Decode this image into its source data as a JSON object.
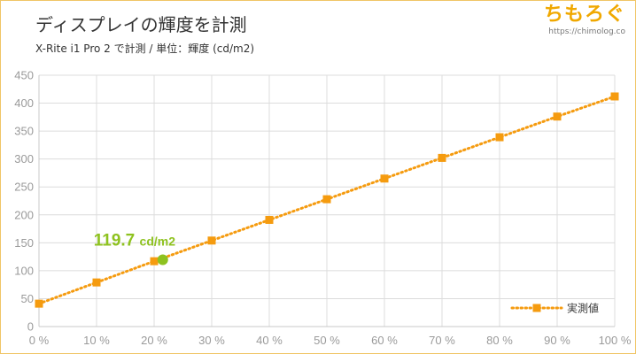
{
  "header": {
    "title": "ディスプレイの輝度を計測",
    "subtitle": "X-Rite i1 Pro 2 で計測 / 単位：輝度 (cd/m2)"
  },
  "logo": {
    "text": "ちもろぐ",
    "url": "https://chimolog.co"
  },
  "colors": {
    "series": "#f59b0f",
    "highlight": "#8ec21f",
    "grid": "#dcdcdc",
    "tick_text": "#9a9a9a",
    "frame": "#f0c566"
  },
  "chart_data": {
    "type": "line",
    "xlabel": "",
    "ylabel": "",
    "xlim": [
      0,
      100
    ],
    "ylim": [
      0,
      450
    ],
    "x_ticks": [
      0,
      10,
      20,
      30,
      40,
      50,
      60,
      70,
      80,
      90,
      100
    ],
    "x_tick_labels": [
      "0 %",
      "10 %",
      "20 %",
      "30 %",
      "40 %",
      "50 %",
      "60 %",
      "70 %",
      "80 %",
      "90 %",
      "100 %"
    ],
    "y_ticks": [
      0,
      50,
      100,
      150,
      200,
      250,
      300,
      350,
      400,
      450
    ],
    "grid": true,
    "legend_position": "bottom-right",
    "series": [
      {
        "name": "実測値",
        "line_style": "dotted",
        "marker": "square",
        "x": [
          0,
          10,
          20,
          30,
          40,
          50,
          60,
          70,
          80,
          90,
          100
        ],
        "y": [
          41,
          79,
          117,
          154,
          191,
          228,
          265,
          302,
          339,
          376,
          412
        ]
      }
    ],
    "highlight_point": {
      "x": 21.5,
      "y": 119.7
    },
    "annotation": {
      "value": "119.7",
      "unit": "cd/m2"
    }
  }
}
